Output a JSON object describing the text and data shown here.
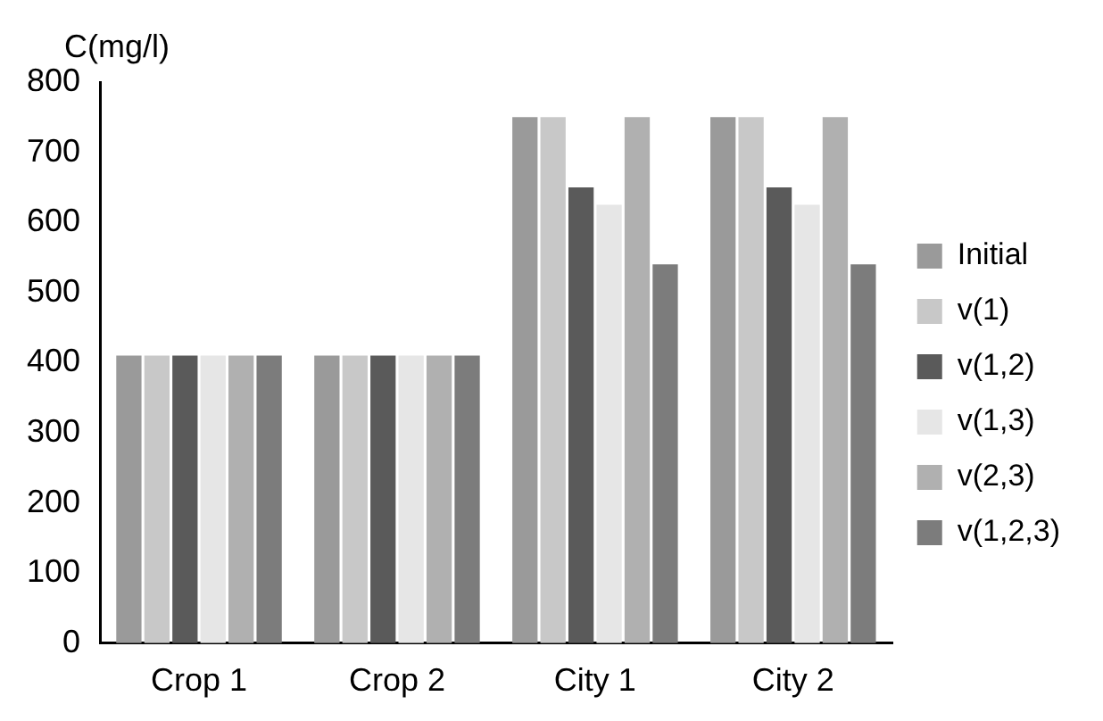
{
  "chart_data": {
    "type": "bar",
    "ylabel": "C(mg/l)",
    "categories": [
      "Crop 1",
      "Crop 2",
      "City 1",
      "City 2"
    ],
    "series": [
      {
        "name": "Initial",
        "color": "#9a9a9a",
        "values": [
          410,
          410,
          750,
          750
        ]
      },
      {
        "name": "v(1)",
        "color": "#c8c8c8",
        "values": [
          410,
          410,
          750,
          750
        ]
      },
      {
        "name": "v(1,2)",
        "color": "#5a5a5a",
        "values": [
          410,
          410,
          650,
          650
        ]
      },
      {
        "name": "v(1,3)",
        "color": "#e6e6e6",
        "values": [
          410,
          410,
          625,
          625
        ]
      },
      {
        "name": "v(2,3)",
        "color": "#b0b0b0",
        "values": [
          410,
          410,
          750,
          750
        ]
      },
      {
        "name": "v(1,2,3)",
        "color": "#7c7c7c",
        "values": [
          410,
          410,
          540,
          540
        ]
      }
    ],
    "ylim": [
      0,
      800
    ],
    "yticks": [
      0,
      100,
      200,
      300,
      400,
      500,
      600,
      700,
      800
    ],
    "grid": false,
    "legend": "right"
  }
}
